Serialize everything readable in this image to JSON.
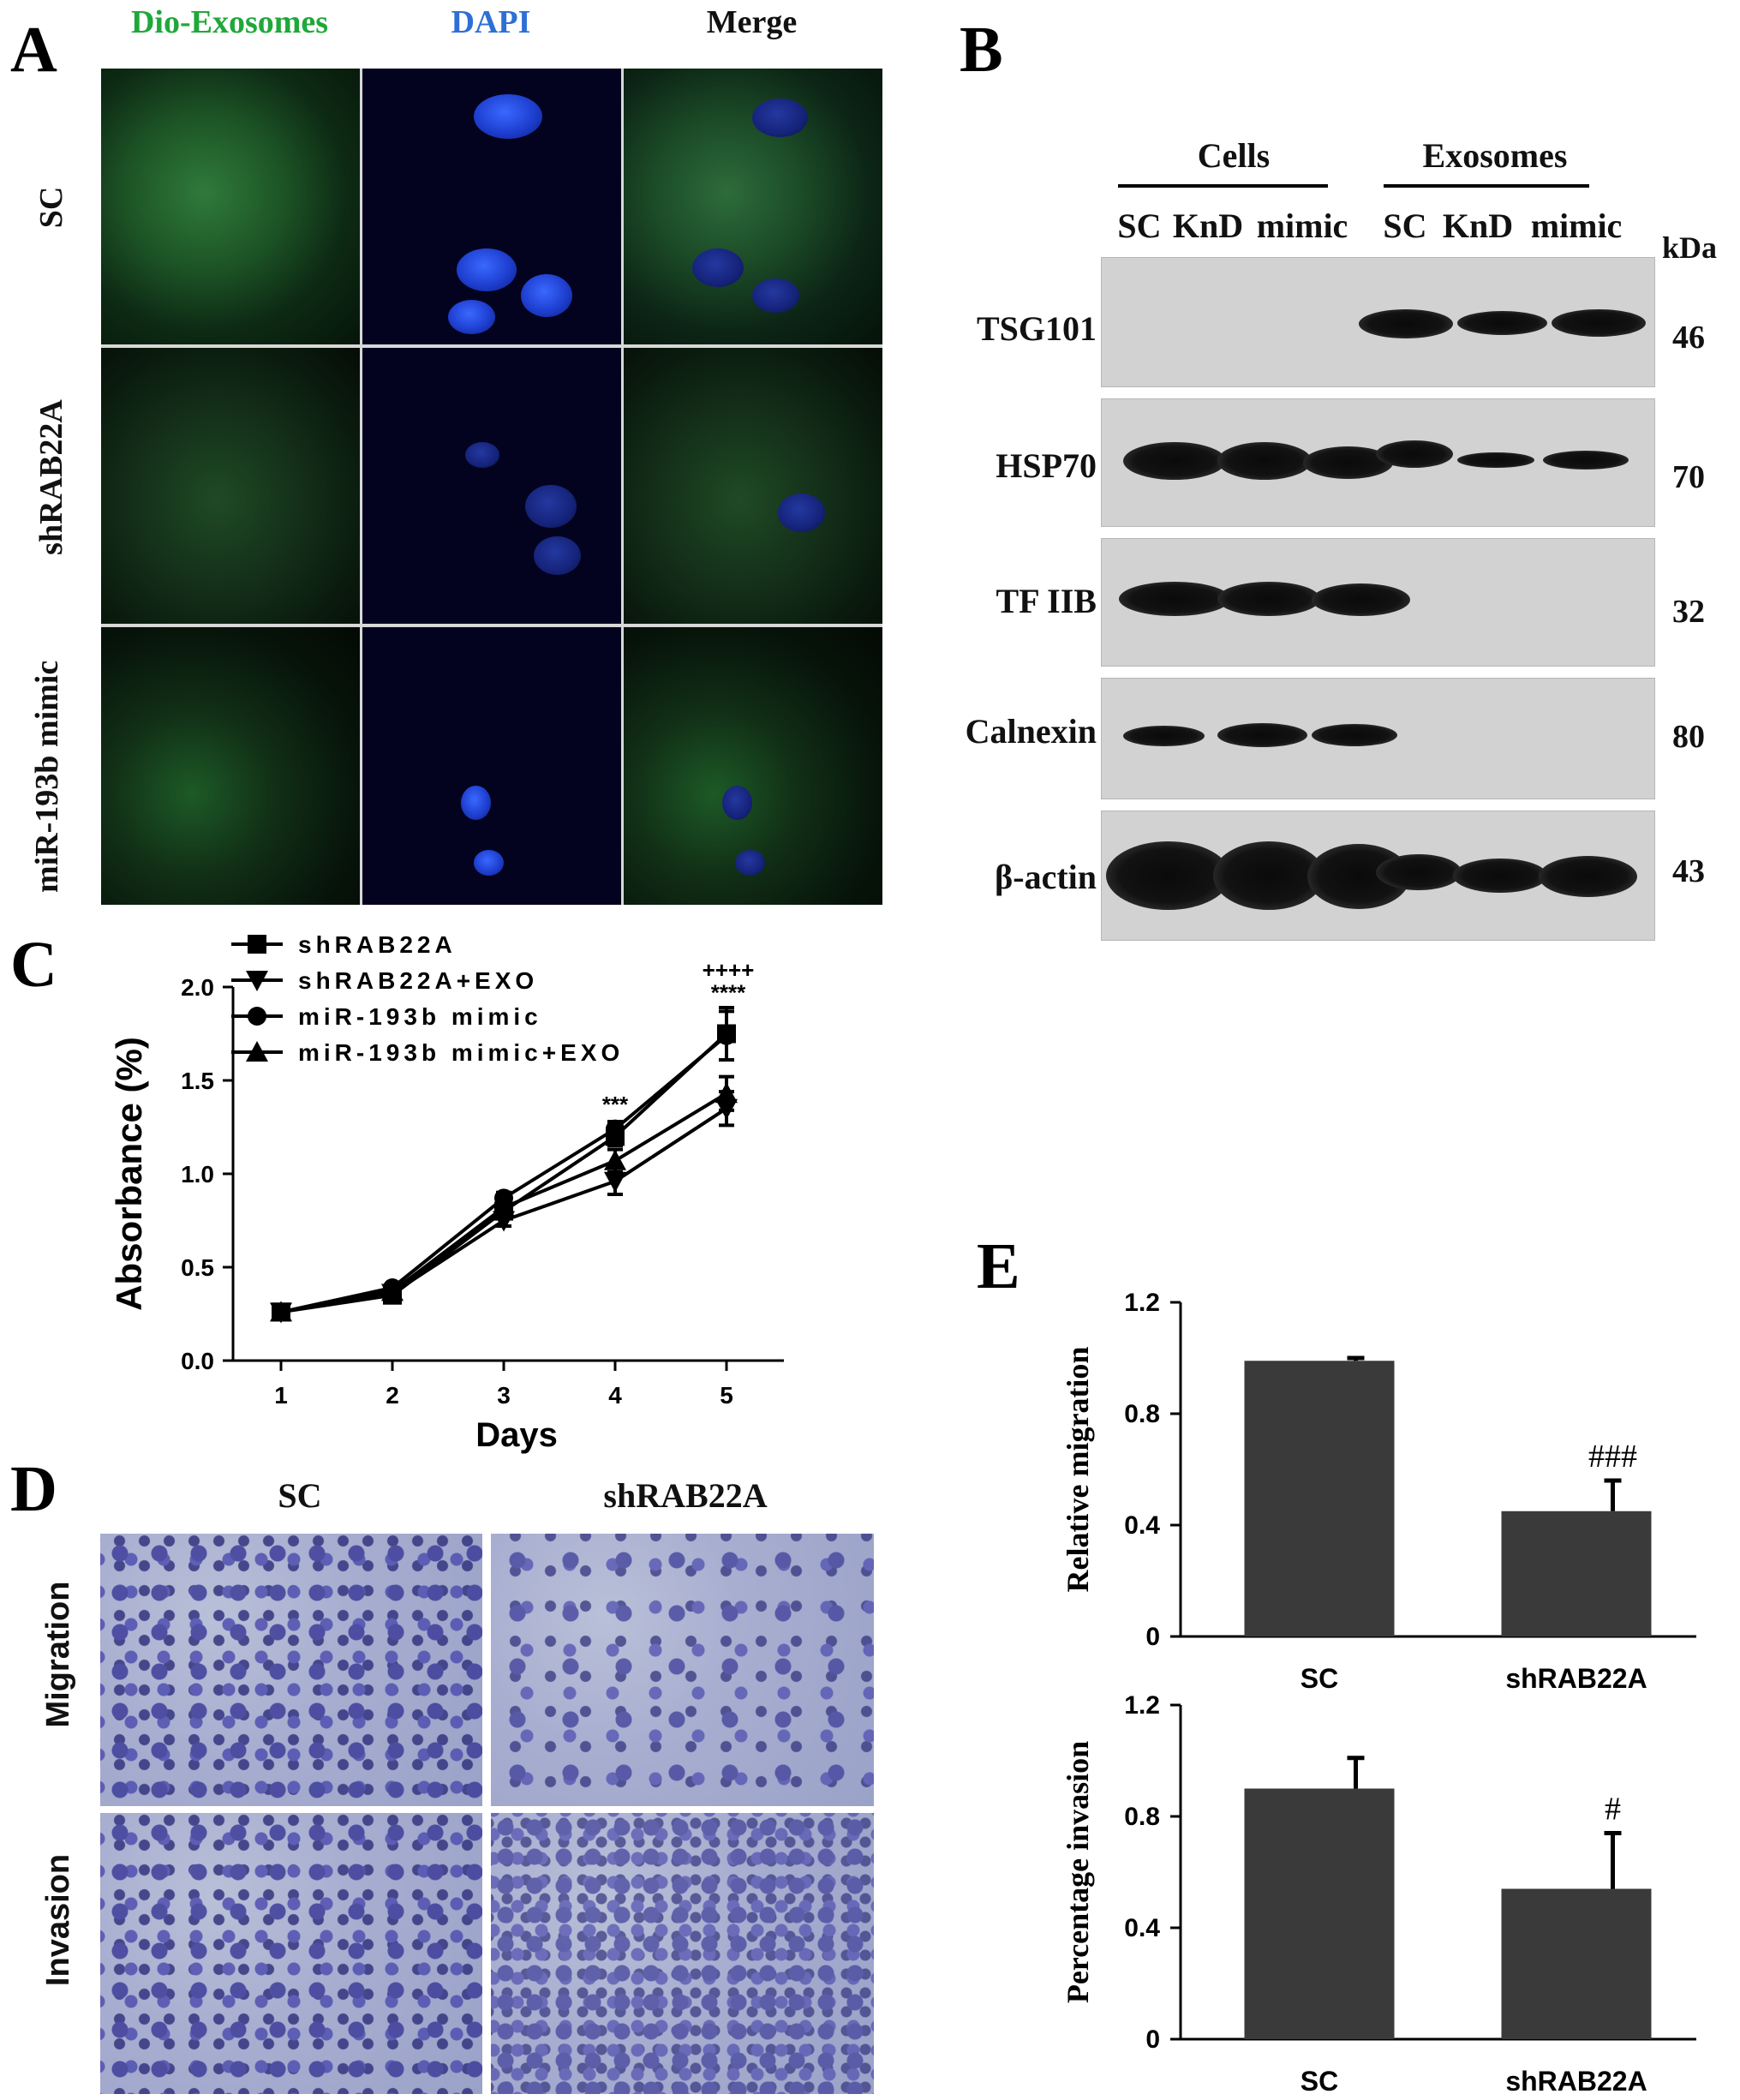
{
  "panels": {
    "a": "A",
    "b": "B",
    "c": "C",
    "d": "D",
    "e": "E"
  },
  "panel_a": {
    "columns": [
      "Dio-Exosomes",
      "DAPI",
      "Merge"
    ],
    "column_colors": [
      "#1fa83a",
      "#2e6fd6",
      "#111111"
    ],
    "rows": [
      "SC",
      "shRAB22A",
      "miR-193b mimic"
    ]
  },
  "panel_b": {
    "groups": [
      "Cells",
      "Exosomes"
    ],
    "lanes": [
      "SC",
      "KnD",
      "mimic",
      "SC",
      "KnD",
      "mimic"
    ],
    "unit": "kDa",
    "proteins": [
      {
        "name": "TSG101",
        "kda": "46"
      },
      {
        "name": "HSP70",
        "kda": "70"
      },
      {
        "name": "TF IIB",
        "kda": "32"
      },
      {
        "name": "Calnexin",
        "kda": "80"
      },
      {
        "name": "β-actin",
        "kda": "43"
      }
    ]
  },
  "panel_d": {
    "columns": [
      "SC",
      "shRAB22A"
    ],
    "rows": [
      "Migration",
      "Invasion"
    ]
  },
  "chart_data": [
    {
      "type": "line",
      "x": [
        1,
        2,
        3,
        4,
        5
      ],
      "xlabel": "Days",
      "ylabel": "Absorbance (%)",
      "ylim": [
        0.0,
        2.0
      ],
      "yticks": [
        "0.0",
        "0.5",
        "1.0",
        "1.5",
        "2.0"
      ],
      "xticks": [
        "1",
        "2",
        "3",
        "4",
        "5"
      ],
      "legend_position": "top-left",
      "series": [
        {
          "name": "shRAB22A",
          "marker": "square",
          "values": [
            0.26,
            0.35,
            0.8,
            1.2,
            1.75
          ],
          "errors": [
            0.01,
            0.02,
            0.03,
            0.05,
            0.14
          ]
        },
        {
          "name": "shRAB22A+EXO",
          "marker": "triangle-down",
          "values": [
            0.26,
            0.36,
            0.75,
            0.96,
            1.35
          ],
          "errors": [
            0.01,
            0.02,
            0.03,
            0.07,
            0.09
          ]
        },
        {
          "name": "miR-193b mimic",
          "marker": "circle",
          "values": [
            0.26,
            0.39,
            0.87,
            1.24,
            1.74
          ],
          "errors": [
            0.01,
            0.02,
            0.03,
            0.04,
            0.13
          ]
        },
        {
          "name": "miR-193b mimic+EXO",
          "marker": "triangle-up",
          "values": [
            0.26,
            0.37,
            0.82,
            1.07,
            1.43
          ],
          "errors": [
            0.01,
            0.02,
            0.03,
            0.06,
            0.09
          ]
        }
      ],
      "annotations": [
        {
          "x": 4,
          "text": "***"
        },
        {
          "x": 5,
          "text": "++++"
        },
        {
          "x": 5,
          "text": "****"
        }
      ]
    },
    {
      "type": "bar",
      "categories": [
        "SC",
        "shRAB22A"
      ],
      "values": [
        0.99,
        0.45
      ],
      "errors": [
        0.01,
        0.11
      ],
      "ylabel": "Relative migration",
      "ylim": [
        0,
        1.2
      ],
      "yticks": [
        "0",
        "0.4",
        "0.8",
        "1.2"
      ],
      "annotations": [
        {
          "category": "shRAB22A",
          "text": "###"
        }
      ]
    },
    {
      "type": "bar",
      "categories": [
        "SC",
        "shRAB22A"
      ],
      "values": [
        0.9,
        0.54
      ],
      "errors": [
        0.11,
        0.2
      ],
      "ylabel": "Percentage invasion",
      "ylim": [
        0,
        1.2
      ],
      "yticks": [
        "0",
        "0.4",
        "0.8",
        "1.2"
      ],
      "annotations": [
        {
          "category": "shRAB22A",
          "text": "#"
        }
      ]
    }
  ]
}
